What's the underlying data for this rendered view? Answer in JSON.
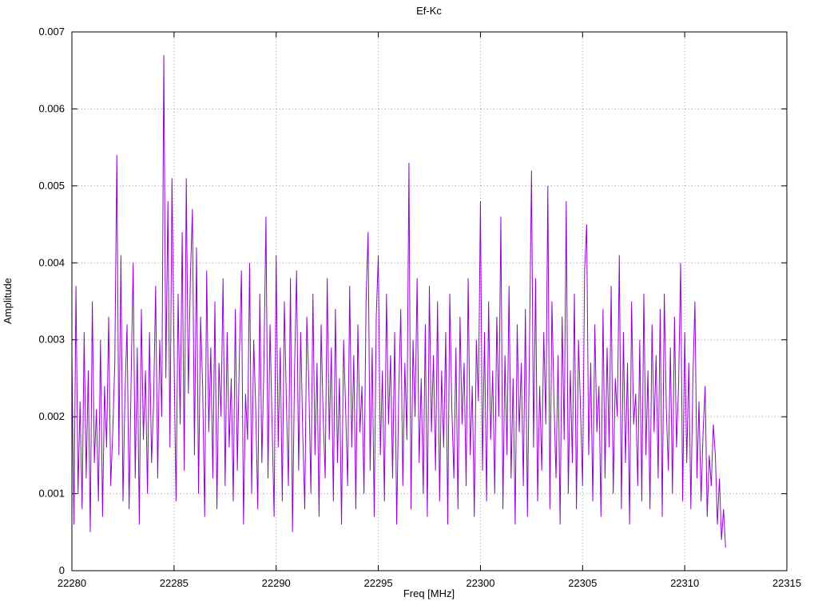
{
  "title": "Ef-Kc",
  "chart_data": {
    "type": "line",
    "title": "Ef-Kc",
    "xlabel": "Freq [MHz]",
    "ylabel": "Amplitude",
    "xlim": [
      22280,
      22315
    ],
    "ylim": [
      0,
      0.007
    ],
    "x_ticks": [
      22280,
      22285,
      22290,
      22295,
      22300,
      22305,
      22310,
      22315
    ],
    "x_tick_labels": [
      "22280",
      "22285",
      "22290",
      "22295",
      "22300",
      "22305",
      "22310",
      "22315"
    ],
    "y_ticks": [
      0,
      0.001,
      0.002,
      0.003,
      0.004,
      0.005,
      0.006,
      0.007
    ],
    "y_tick_labels": [
      "0",
      "0.001",
      "0.002",
      "0.003",
      "0.004",
      "0.005",
      "0.006",
      "0.007"
    ],
    "grid": true,
    "grid_style": "dotted",
    "legend": "none",
    "line_color": "#9400d3",
    "border_color": "#000000",
    "x_start": 22280,
    "x_step": 0.1,
    "values_scale": 0.0001,
    "values": [
      28,
      6,
      37,
      10,
      22,
      8,
      31,
      12,
      26,
      5,
      35,
      14,
      21,
      9,
      30,
      7,
      24,
      16,
      33,
      11,
      18,
      27,
      54,
      15,
      41,
      9,
      23,
      32,
      8,
      25,
      40,
      12,
      29,
      6,
      34,
      17,
      26,
      10,
      31,
      14,
      22,
      37,
      12,
      30,
      20,
      67,
      25,
      48,
      16,
      51,
      28,
      9,
      36,
      19,
      44,
      13,
      51,
      23,
      38,
      47,
      15,
      42,
      10,
      33,
      24,
      7,
      39,
      18,
      29,
      12,
      35,
      8,
      27,
      20,
      38,
      11,
      31,
      16,
      25,
      9,
      34,
      13,
      28,
      39,
      6,
      23,
      17,
      40,
      10,
      30,
      21,
      8,
      36,
      14,
      27,
      46,
      12,
      32,
      19,
      7,
      41,
      16,
      29,
      9,
      35,
      22,
      11,
      38,
      5,
      26,
      39,
      13,
      31,
      18,
      8,
      33,
      24,
      10,
      36,
      15,
      27,
      7,
      32,
      20,
      12,
      38,
      17,
      29,
      9,
      34,
      14,
      25,
      6,
      30,
      21,
      11,
      37,
      16,
      28,
      8,
      32,
      18,
      24,
      10,
      35,
      44,
      13,
      29,
      7,
      33,
      41,
      15,
      26,
      9,
      36,
      19,
      28,
      12,
      31,
      6,
      23,
      34,
      11,
      27,
      17,
      53,
      8,
      30,
      20,
      38,
      14,
      25,
      10,
      32,
      7,
      37,
      18,
      28,
      13,
      35,
      9,
      26,
      16,
      31,
      6,
      36,
      21,
      12,
      29,
      8,
      33,
      19,
      27,
      11,
      38,
      15,
      24,
      7,
      30,
      22,
      48,
      13,
      31,
      9,
      35,
      17,
      26,
      10,
      33,
      20,
      46,
      8,
      28,
      15,
      37,
      12,
      25,
      6,
      32,
      18,
      27,
      11,
      34,
      7,
      29,
      52,
      16,
      38,
      9,
      24,
      13,
      31,
      19,
      50,
      8,
      35,
      22,
      12,
      28,
      6,
      33,
      17,
      48,
      10,
      26,
      14,
      36,
      8,
      30,
      21,
      11,
      39,
      45,
      15,
      27,
      9,
      32,
      18,
      24,
      7,
      34,
      12,
      29,
      16,
      37,
      10,
      25,
      20,
      41,
      8,
      31,
      14,
      27,
      6,
      35,
      19,
      23,
      11,
      30,
      9,
      36,
      15,
      26,
      8,
      32,
      18,
      28,
      12,
      34,
      7,
      36,
      21,
      13,
      29,
      10,
      33,
      16,
      24,
      40,
      9,
      31,
      14,
      27,
      8,
      25,
      35,
      12,
      22,
      9,
      18,
      24,
      7,
      15,
      11,
      19,
      15,
      6,
      12,
      4,
      8,
      3
    ]
  }
}
